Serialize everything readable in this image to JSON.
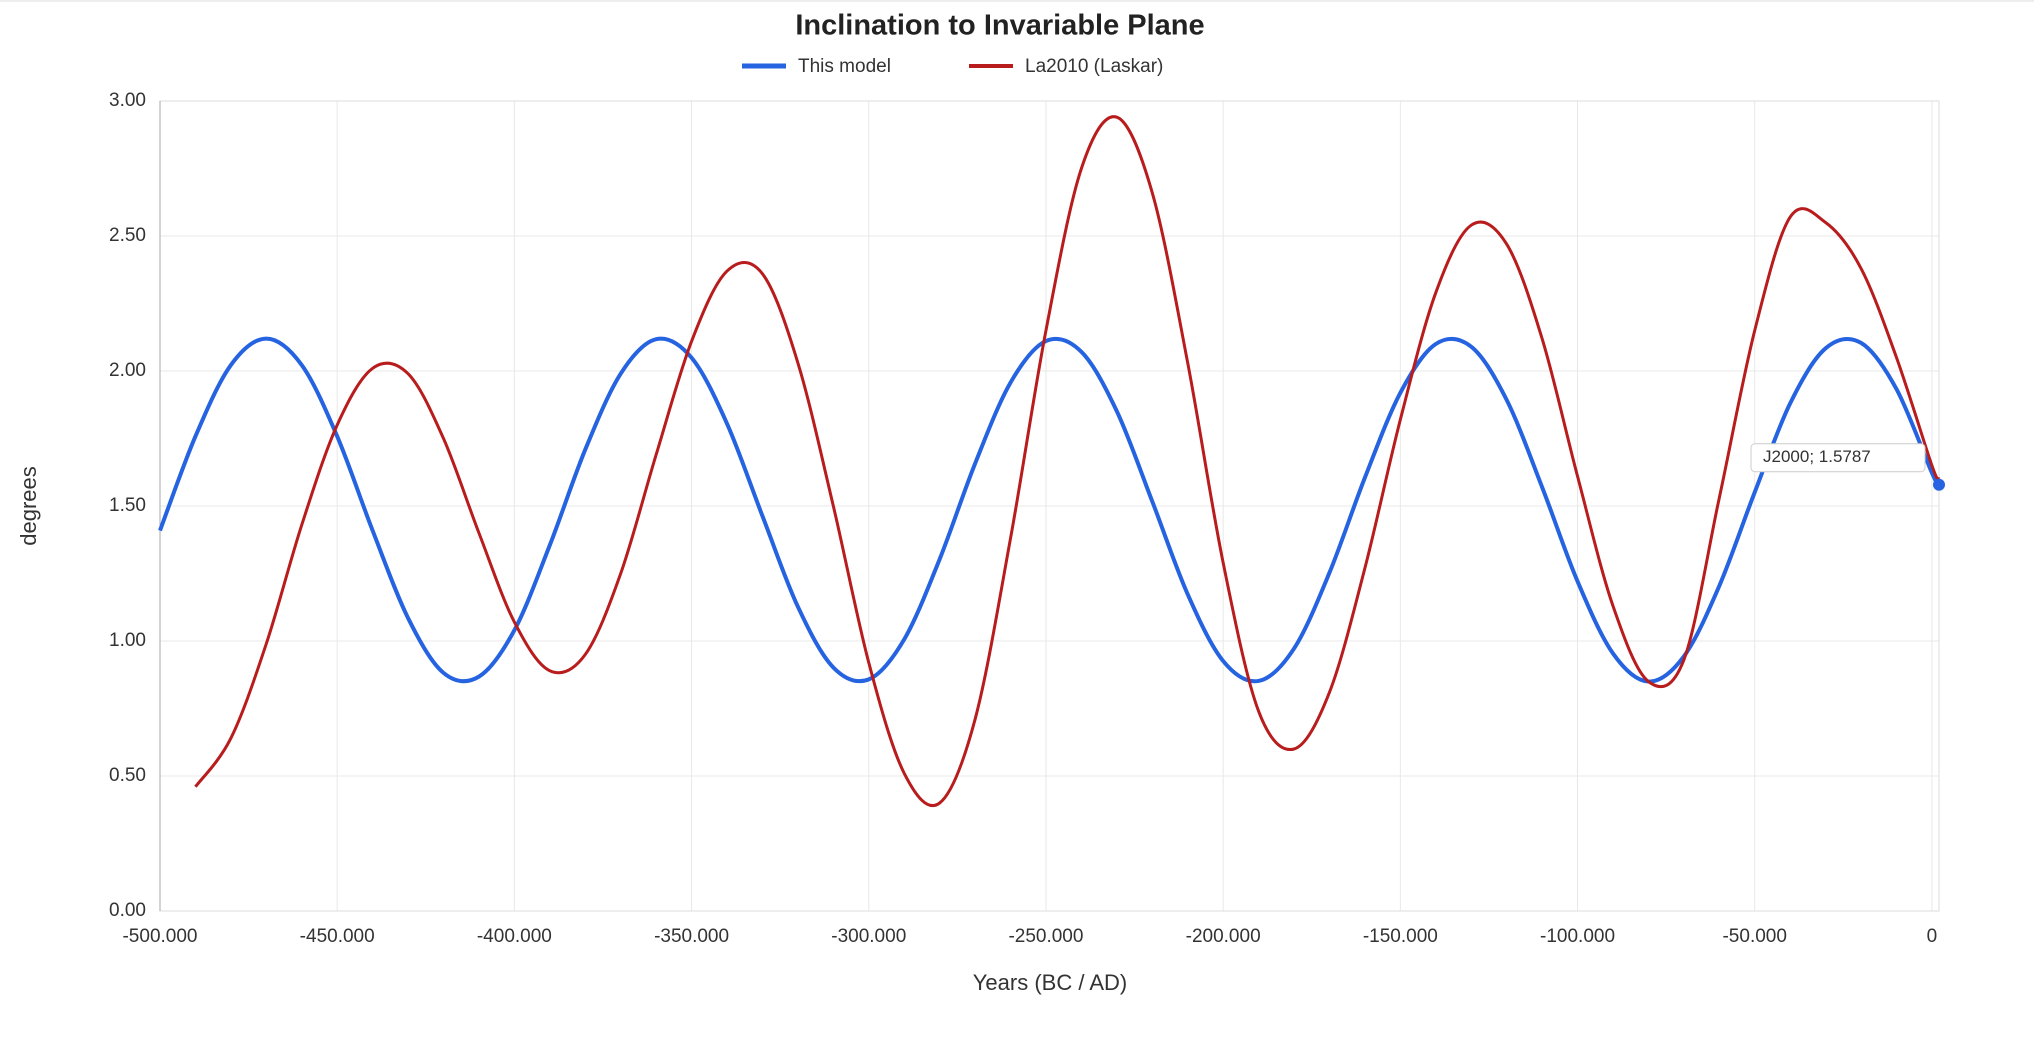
{
  "chart_data": {
    "type": "line",
    "title": "Inclination to Invariable Plane",
    "x_label": "Years (BC / AD)",
    "y_label": "degrees",
    "x": [
      -500000,
      -490000,
      -480000,
      -470000,
      -460000,
      -450000,
      -440000,
      -430000,
      -420000,
      -410000,
      -400000,
      -390000,
      -380000,
      -370000,
      -360000,
      -350000,
      -340000,
      -330000,
      -320000,
      -310000,
      -300000,
      -290000,
      -280000,
      -270000,
      -260000,
      -250000,
      -240000,
      -230000,
      -220000,
      -210000,
      -200000,
      -190000,
      -180000,
      -170000,
      -160000,
      -150000,
      -140000,
      -130000,
      -120000,
      -110000,
      -100000,
      -90000,
      -80000,
      -70000,
      -60000,
      -50000,
      -40000,
      -30000,
      -20000,
      -10000,
      0,
      2000
    ],
    "series": [
      {
        "name": "This model",
        "color": "#2563e0",
        "values": [
          1.409,
          1.758,
          2.022,
          2.12,
          2.022,
          1.758,
          1.409,
          1.085,
          0.882,
          0.868,
          1.04,
          1.355,
          1.709,
          1.99,
          2.118,
          2.049,
          1.805,
          1.463,
          1.127,
          0.902,
          0.858,
          1.006,
          1.303,
          1.657,
          1.957,
          2.111,
          2.071,
          1.851,
          1.517,
          1.173,
          0.926,
          0.852,
          0.972,
          1.253,
          1.605,
          1.919,
          2.1,
          2.09,
          1.893,
          1.57,
          1.221,
          0.954,
          0.85,
          0.943,
          1.204,
          1.551,
          1.88,
          2.084,
          2.104,
          1.933,
          1.623,
          1.5787
        ]
      },
      {
        "name": "La2010 (Laskar)",
        "color": "#b81c1c",
        "values": [
          null,
          0.46,
          0.64,
          0.99,
          1.43,
          1.8,
          2.01,
          1.99,
          1.75,
          1.4,
          1.07,
          0.89,
          0.95,
          1.25,
          1.69,
          2.11,
          2.37,
          2.36,
          2.03,
          1.5,
          0.92,
          0.51,
          0.4,
          0.71,
          1.38,
          2.15,
          2.75,
          2.94,
          2.66,
          2.03,
          1.29,
          0.74,
          0.6,
          0.81,
          1.27,
          1.82,
          2.29,
          2.54,
          2.47,
          2.12,
          1.61,
          1.13,
          0.85,
          0.93,
          1.53,
          2.15,
          2.57,
          2.55,
          2.38,
          2.05,
          1.65,
          1.6
        ]
      }
    ],
    "annotation": "J2000; 1.5787",
    "xlim": [
      -500000,
      2000
    ],
    "xticks": [
      {
        "value": -500000,
        "label": "-500.000"
      },
      {
        "value": -450000,
        "label": "-450.000"
      },
      {
        "value": -400000,
        "label": "-400.000"
      },
      {
        "value": -350000,
        "label": "-350.000"
      },
      {
        "value": -300000,
        "label": "-300.000"
      },
      {
        "value": -250000,
        "label": "-250.000"
      },
      {
        "value": -200000,
        "label": "-200.000"
      },
      {
        "value": -150000,
        "label": "-150.000"
      },
      {
        "value": -100000,
        "label": "-100.000"
      },
      {
        "value": -50000,
        "label": "-50.000"
      },
      0
    ],
    "ylim": [
      0,
      3
    ],
    "yticks": [
      {
        "value": 0,
        "label": "0.00"
      },
      {
        "value": 0.5,
        "label": "0.50"
      },
      {
        "value": 1,
        "label": "1.00"
      },
      {
        "value": 1.5,
        "label": "1.50"
      },
      {
        "value": 2,
        "label": "2.00"
      },
      {
        "value": 2.5,
        "label": "2.50"
      },
      {
        "value": 3,
        "label": "3.00"
      }
    ],
    "grid": true,
    "legend": "top"
  }
}
